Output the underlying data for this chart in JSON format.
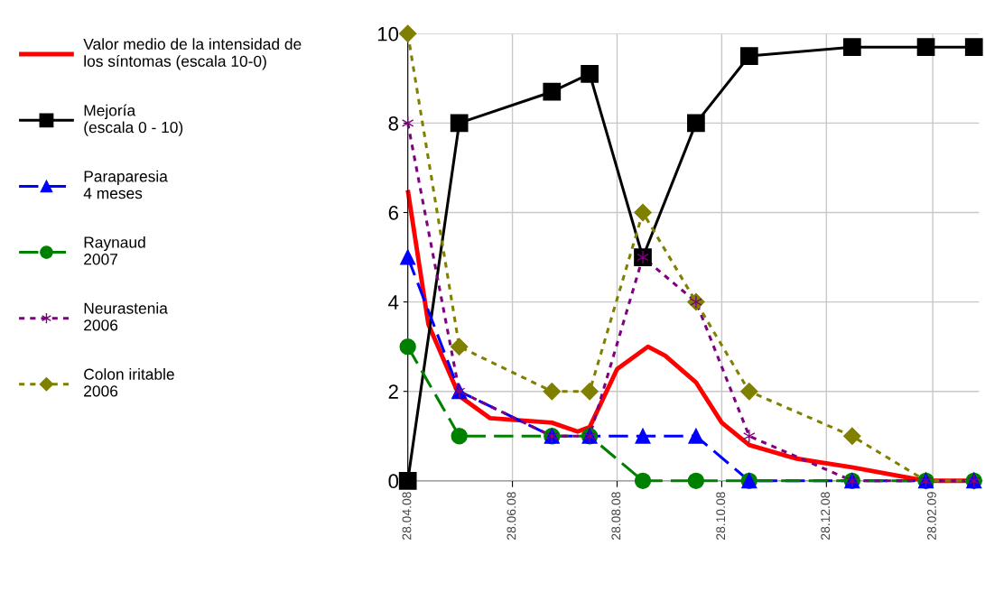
{
  "chart_data": {
    "type": "line",
    "x": [
      "2008-04-28",
      "2008-05-28",
      "2008-07-21",
      "2008-08-12",
      "2008-09-12",
      "2008-10-13",
      "2008-11-13",
      "2009-01-12",
      "2009-02-24",
      "2009-03-24"
    ],
    "series": [
      {
        "name": "Valor medio de la intensidad de\nlos síntomas (escala 10-0)",
        "color": "#ff0000",
        "marker": "none",
        "line_style": "solid",
        "x": [
          "2008-04-28",
          "2008-05-10",
          "2008-05-28",
          "2008-06-15",
          "2008-07-21",
          "2008-08-05",
          "2008-08-12",
          "2008-08-28",
          "2008-09-15",
          "2008-09-25",
          "2008-10-13",
          "2008-10-28",
          "2008-11-13",
          "2008-12-10",
          "2009-01-12",
          "2009-02-24",
          "2009-03-24"
        ],
        "values": [
          6.5,
          3.5,
          1.9,
          1.4,
          1.3,
          1.1,
          1.2,
          2.5,
          3.0,
          2.8,
          2.2,
          1.3,
          0.8,
          0.5,
          0.3,
          0.0,
          0.0
        ]
      },
      {
        "name": "Mejoría\n(escala 0 - 10)",
        "color": "#000000",
        "marker": "square",
        "line_style": "solid",
        "values": [
          0,
          8,
          8.7,
          9.1,
          5,
          8,
          9.5,
          9.7,
          9.7,
          9.7
        ]
      },
      {
        "name": "Paraparesia\n4 meses",
        "color": "#0000ff",
        "marker": "triangle",
        "line_style": "dashed",
        "values": [
          5,
          2,
          1,
          1,
          1,
          1,
          0,
          0,
          0,
          0
        ]
      },
      {
        "name": "Raynaud\n2007",
        "color": "#008000",
        "marker": "circle",
        "line_style": "dashed",
        "values": [
          3,
          1,
          1,
          1,
          0,
          0,
          0,
          0,
          0,
          0
        ]
      },
      {
        "name": "Neurastenia\n2006",
        "color": "#800080",
        "marker": "cross",
        "line_style": "dotted",
        "values": [
          8,
          2,
          1,
          1,
          5,
          4,
          1,
          0,
          0,
          0
        ]
      },
      {
        "name": "Colon iritable\n2006",
        "color": "#808000",
        "marker": "diamond",
        "line_style": "dotted",
        "values": [
          10,
          3,
          2,
          2,
          6,
          4,
          2,
          1,
          0,
          0
        ]
      }
    ],
    "xlim": [
      "2008-04-28",
      "2009-03-27"
    ],
    "xticks": [
      {
        "value": "2008-04-28",
        "label": "28.04.08"
      },
      {
        "value": "2008-06-28",
        "label": "28.06.08"
      },
      {
        "value": "2008-08-28",
        "label": "28.08.08"
      },
      {
        "value": "2008-10-28",
        "label": "28.10.08"
      },
      {
        "value": "2008-12-28",
        "label": "28.12.08"
      },
      {
        "value": "2009-02-28",
        "label": "28.02.09"
      }
    ],
    "ylim": [
      0,
      10
    ],
    "yticks": [
      0,
      2,
      4,
      6,
      8,
      10
    ],
    "grid": true,
    "legend": "left"
  }
}
